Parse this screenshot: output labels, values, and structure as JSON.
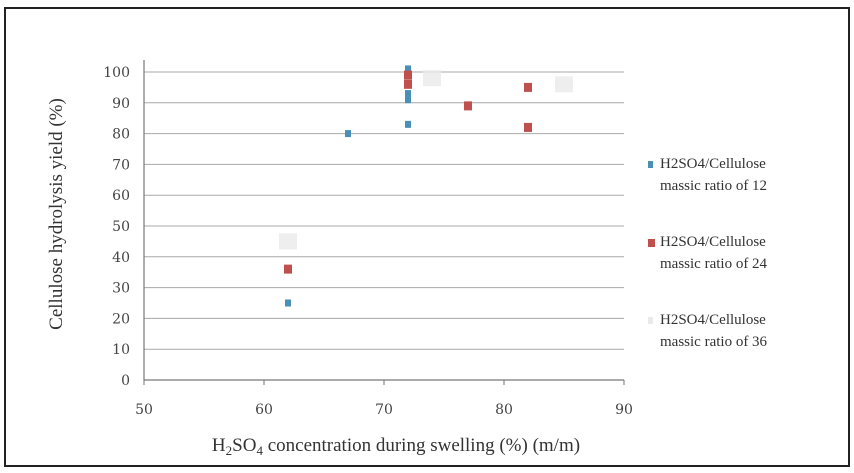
{
  "chart_data": {
    "type": "scatter",
    "title": "",
    "xlabel": {
      "main": "H",
      "sub": "2",
      "mid": "SO",
      "sub2": "4",
      "rest": " concentration during swelling (%) (m/m)"
    },
    "ylabel": "Cellulose hydrolysis yield (%)",
    "xlim": [
      50,
      90
    ],
    "ylim": [
      0,
      100
    ],
    "xticks": [
      "50",
      "60",
      "70",
      "80",
      "90"
    ],
    "yticks": [
      "0",
      "10",
      "20",
      "30",
      "40",
      "50",
      "60",
      "70",
      "80",
      "90",
      "100"
    ],
    "grid": "horizontal",
    "legend_position": "right",
    "series": [
      {
        "name_line1": "H2SO4/Cellulose",
        "name_line2": "massic ratio of 12",
        "color": "#4a8fb5",
        "points": [
          {
            "x": 62,
            "y": 25
          },
          {
            "x": 67,
            "y": 80
          },
          {
            "x": 72,
            "y": 83
          },
          {
            "x": 72,
            "y": 91
          },
          {
            "x": 72,
            "y": 93
          },
          {
            "x": 72,
            "y": 101
          }
        ]
      },
      {
        "name_line1": "H2SO4/Cellulose",
        "name_line2": "massic ratio of 24",
        "color": "#c0504d",
        "points": [
          {
            "x": 62,
            "y": 36
          },
          {
            "x": 72,
            "y": 96
          },
          {
            "x": 72,
            "y": 99
          },
          {
            "x": 77,
            "y": 89
          },
          {
            "x": 82,
            "y": 82
          },
          {
            "x": 82,
            "y": 95
          }
        ]
      },
      {
        "name_line1": "H2SO4/Cellulose",
        "name_line2": "massic ratio of 36",
        "color": "#eaeaea",
        "points": [
          {
            "x": 62,
            "y": 45
          },
          {
            "x": 74,
            "y": 98
          },
          {
            "x": 85,
            "y": 96
          }
        ]
      }
    ]
  }
}
